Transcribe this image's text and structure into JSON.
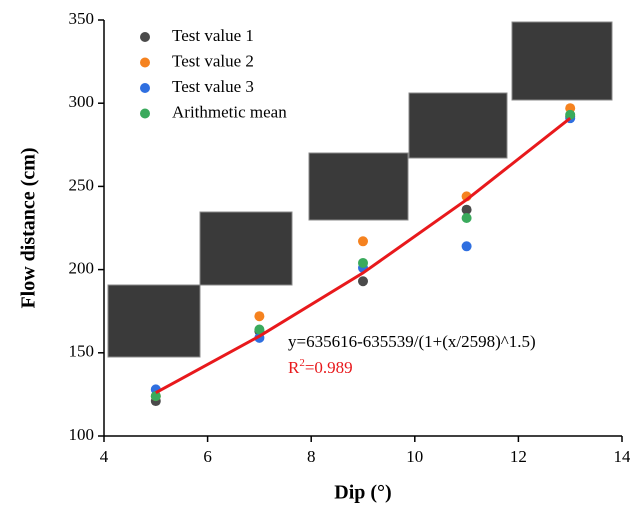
{
  "chart_data": {
    "type": "scatter",
    "xlabel": "Dip (°)",
    "ylabel": "Flow distance (cm)",
    "xlim": [
      4,
      14
    ],
    "xticks": [
      4,
      6,
      8,
      10,
      12,
      14
    ],
    "ylim": [
      100,
      350
    ],
    "yticks": [
      100,
      150,
      200,
      250,
      300,
      350
    ],
    "legend": "upper left",
    "series": [
      {
        "name": "Test value 1",
        "color": "#4a4a4a",
        "x": [
          5,
          7,
          9,
          11,
          13
        ],
        "values": [
          121,
          163,
          193,
          236,
          292
        ]
      },
      {
        "name": "Test value 2",
        "color": "#f5821f",
        "x": [
          5,
          7,
          9,
          11,
          13
        ],
        "values": [
          124,
          172,
          217,
          244,
          297
        ]
      },
      {
        "name": "Test value 3",
        "color": "#2f6fe0",
        "x": [
          5,
          7,
          9,
          11,
          13
        ],
        "values": [
          128,
          159,
          201,
          214,
          291
        ]
      },
      {
        "name": "Arithmetic mean",
        "color": "#3aaa5c",
        "x": [
          5,
          7,
          9,
          11,
          13
        ],
        "values": [
          124,
          164,
          204,
          231,
          293
        ]
      }
    ],
    "fit": {
      "color": "#e8191c",
      "x": [
        5,
        7,
        9,
        11,
        13
      ],
      "values": [
        126,
        160,
        198,
        242,
        291
      ]
    },
    "equation": "y=635616-635539/(1+(x/2598)^1.5)",
    "r_squared": [
      "R",
      "2",
      "=0.989"
    ]
  }
}
